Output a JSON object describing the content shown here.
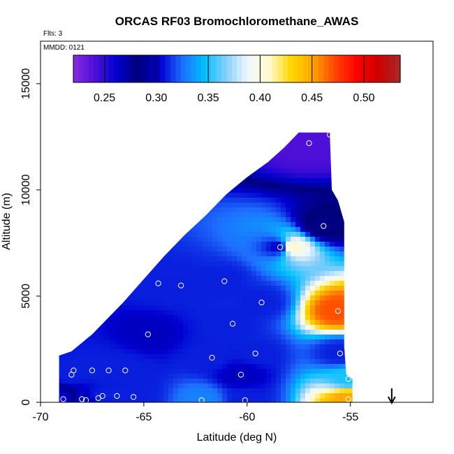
{
  "chart_data": {
    "type": "heatmap",
    "title": "ORCAS RF03 Bromochloromethane_AWAS",
    "flights_label": "Flts: 3",
    "date_label": "MMDD: 0121",
    "xlabel": "Latitude (deg N)",
    "ylabel": "Altitude (m)",
    "xlim": [
      -70,
      -51
    ],
    "ylim": [
      0,
      17000
    ],
    "x_ticks": [
      -70,
      -65,
      -60,
      -55
    ],
    "x_tick_labels": [
      "-70",
      "-65",
      "-60",
      "-55"
    ],
    "y_ticks": [
      0,
      5000,
      10000,
      15000
    ],
    "y_tick_labels": [
      "0",
      "5000",
      "10000",
      "15000"
    ],
    "colorbar": {
      "range": [
        0.22,
        0.535
      ],
      "ticks": [
        0.25,
        0.3,
        0.35,
        0.4,
        0.45,
        0.5
      ],
      "tick_labels": [
        "0.25",
        "0.30",
        "0.35",
        "0.40",
        "0.45",
        "0.50"
      ],
      "colors": [
        "#8a2be2",
        "#4b0fd8",
        "#0000cd",
        "#00007a",
        "#0000d0",
        "#1e6eff",
        "#00bfff",
        "#87cefa",
        "#f0f8ff",
        "#fffacd",
        "#ffd700",
        "#ffa500",
        "#ff4500",
        "#ff0000",
        "#cd0000",
        "#a52a2a"
      ],
      "position": "top-inside"
    },
    "curtain_top_boundary": [
      [
        -69.1,
        2200
      ],
      [
        -68.5,
        2400
      ],
      [
        -67.5,
        3200
      ],
      [
        -66,
        4700
      ],
      [
        -65,
        5800
      ],
      [
        -64,
        6900
      ],
      [
        -63,
        7900
      ],
      [
        -62,
        8800
      ],
      [
        -61,
        9800
      ],
      [
        -60,
        10600
      ],
      [
        -59,
        11300
      ],
      [
        -58.2,
        12000
      ],
      [
        -57.5,
        12700
      ],
      [
        -57.3,
        12700
      ],
      [
        -56,
        12700
      ]
    ],
    "curtain_right_boundary": [
      [
        -56,
        12700
      ],
      [
        -55.9,
        10000
      ],
      [
        -55.6,
        9500
      ],
      [
        -55.3,
        8500
      ],
      [
        -55.3,
        2600
      ],
      [
        -55.2,
        1300
      ],
      [
        -54.9,
        1100
      ],
      [
        -54.9,
        0
      ]
    ],
    "samples": [
      {
        "lat": -68.9,
        "alt": 150,
        "value": 0.26
      },
      {
        "lat": -68.4,
        "alt": 1500,
        "value": 0.31
      },
      {
        "lat": -68.5,
        "alt": 1300,
        "value": 0.31
      },
      {
        "lat": -68.0,
        "alt": 150,
        "value": 0.3
      },
      {
        "lat": -67.8,
        "alt": 100,
        "value": 0.3
      },
      {
        "lat": -67.5,
        "alt": 1500,
        "value": 0.31
      },
      {
        "lat": -67.2,
        "alt": 200,
        "value": 0.31
      },
      {
        "lat": -67.0,
        "alt": 300,
        "value": 0.31
      },
      {
        "lat": -66.7,
        "alt": 1500,
        "value": 0.31
      },
      {
        "lat": -66.3,
        "alt": 300,
        "value": 0.31
      },
      {
        "lat": -65.9,
        "alt": 1500,
        "value": 0.31
      },
      {
        "lat": -65.5,
        "alt": 250,
        "value": 0.31
      },
      {
        "lat": -64.8,
        "alt": 3200,
        "value": 0.3
      },
      {
        "lat": -64.3,
        "alt": 5600,
        "value": 0.31
      },
      {
        "lat": -63.2,
        "alt": 5500,
        "value": 0.31
      },
      {
        "lat": -62.2,
        "alt": 100,
        "value": 0.33
      },
      {
        "lat": -61.7,
        "alt": 2100,
        "value": 0.31
      },
      {
        "lat": -61.1,
        "alt": 5700,
        "value": 0.31
      },
      {
        "lat": -60.7,
        "alt": 3700,
        "value": 0.31
      },
      {
        "lat": -60.3,
        "alt": 1300,
        "value": 0.3
      },
      {
        "lat": -60.1,
        "alt": 100,
        "value": 0.31
      },
      {
        "lat": -59.6,
        "alt": 2300,
        "value": 0.31
      },
      {
        "lat": -59.3,
        "alt": 4700,
        "value": 0.31
      },
      {
        "lat": -58.4,
        "alt": 7300,
        "value": 0.3
      },
      {
        "lat": -57.9,
        "alt": 7300,
        "value": 0.41
      },
      {
        "lat": -57.0,
        "alt": 12200,
        "value": 0.24
      },
      {
        "lat": -56.3,
        "alt": 8300,
        "value": 0.28
      },
      {
        "lat": -56.0,
        "alt": 12600,
        "value": 0.24
      },
      {
        "lat": -55.6,
        "alt": 4300,
        "value": 0.47
      },
      {
        "lat": -55.5,
        "alt": 2300,
        "value": 0.31
      },
      {
        "lat": -55.1,
        "alt": 1100,
        "value": 0.35
      },
      {
        "lat": -55.1,
        "alt": 150,
        "value": 0.45
      }
    ],
    "arrow_marker": {
      "lat": -53
    }
  }
}
